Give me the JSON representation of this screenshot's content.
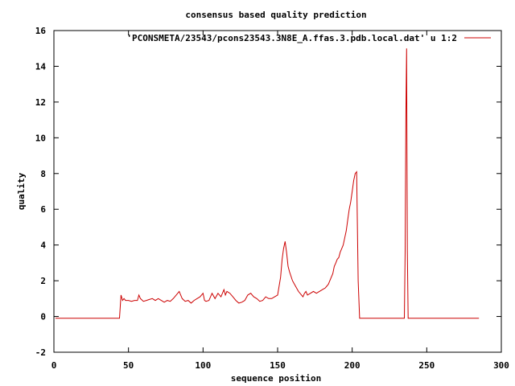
{
  "chart_data": {
    "type": "line",
    "title": "consensus based quality prediction",
    "xlabel": "sequence position",
    "ylabel": "quality",
    "xlim": [
      0,
      300
    ],
    "ylim": [
      -2,
      16
    ],
    "xticks": [
      0,
      50,
      100,
      150,
      200,
      250,
      300
    ],
    "yticks": [
      -2,
      0,
      2,
      4,
      6,
      8,
      10,
      12,
      14,
      16
    ],
    "grid": false,
    "legend_position": "top-right",
    "series": [
      {
        "name": "'PCONSMETA/23543/pcons23543.3N8E_A.ffas.3.pdb.local.dat' u 1:2",
        "color": "#cc0000",
        "x": [
          1,
          44,
          44.5,
          45,
          46,
          47,
          48,
          50,
          52,
          54,
          56,
          57,
          58,
          60,
          62,
          64,
          66,
          68,
          70,
          72,
          74,
          76,
          78,
          80,
          82,
          84,
          86,
          88,
          90,
          92,
          94,
          96,
          98,
          100,
          101,
          102,
          104,
          106,
          108,
          110,
          112,
          114,
          115,
          116,
          118,
          120,
          122,
          124,
          126,
          128,
          130,
          132,
          134,
          136,
          138,
          140,
          142,
          144,
          146,
          148,
          150,
          152,
          153,
          154,
          155,
          156,
          157,
          158,
          160,
          162,
          164,
          166,
          167,
          168,
          169,
          170,
          172,
          174,
          176,
          178,
          180,
          182,
          184,
          185,
          186,
          187,
          188,
          189,
          190,
          191,
          192,
          193,
          194,
          195,
          196,
          197,
          198,
          199,
          200,
          201,
          202,
          203,
          204,
          205,
          210,
          220,
          230,
          235,
          235.5,
          236,
          236.5,
          237,
          237.5,
          238,
          240,
          250,
          260,
          270,
          280,
          285
        ],
        "y": [
          -0.1,
          -0.1,
          0.6,
          1.2,
          0.9,
          1.0,
          0.9,
          0.9,
          0.85,
          0.9,
          0.9,
          1.2,
          1.0,
          0.85,
          0.9,
          0.95,
          1.0,
          0.9,
          1.0,
          0.9,
          0.8,
          0.9,
          0.85,
          1.0,
          1.2,
          1.4,
          1.0,
          0.85,
          0.9,
          0.75,
          0.9,
          1.0,
          1.1,
          1.3,
          0.9,
          0.85,
          0.9,
          1.3,
          1.0,
          1.3,
          1.1,
          1.5,
          1.2,
          1.4,
          1.3,
          1.1,
          0.9,
          0.75,
          0.8,
          0.9,
          1.2,
          1.3,
          1.1,
          1.0,
          0.85,
          0.9,
          1.1,
          1.0,
          1.0,
          1.1,
          1.2,
          2.2,
          3.2,
          3.8,
          4.2,
          3.6,
          2.8,
          2.5,
          2.0,
          1.7,
          1.4,
          1.2,
          1.1,
          1.3,
          1.4,
          1.2,
          1.3,
          1.4,
          1.3,
          1.4,
          1.5,
          1.6,
          1.8,
          2.0,
          2.2,
          2.4,
          2.8,
          3.0,
          3.2,
          3.3,
          3.6,
          3.8,
          4.0,
          4.4,
          4.8,
          5.4,
          6.0,
          6.4,
          7.0,
          7.6,
          8.0,
          8.1,
          2.0,
          -0.1,
          -0.1,
          -0.1,
          -0.1,
          -0.1,
          3.7,
          11.3,
          15.0,
          3.7,
          -0.1,
          -0.1,
          -0.1,
          -0.1,
          -0.1,
          -0.1,
          -0.1,
          -0.1
        ]
      }
    ]
  }
}
